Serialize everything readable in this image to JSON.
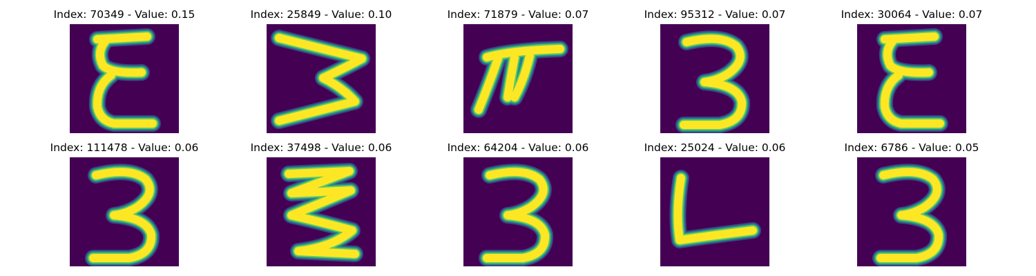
{
  "colors": {
    "background": "#440154",
    "edge_outer": "#3b528b",
    "edge_mid": "#21918c",
    "edge_inner": "#5ec962",
    "stroke": "#fde725"
  },
  "panels": [
    {
      "index": "70349",
      "value": "0.15",
      "title": "Index: 70349 - Value: 0.15",
      "glyph": "zigzag-e"
    },
    {
      "index": "25849",
      "value": "0.10",
      "title": "Index: 25849 - Value: 0.10",
      "glyph": "sideways-w"
    },
    {
      "index": "71879",
      "value": "0.07",
      "title": "Index: 71879 - Value: 0.07",
      "glyph": "pi-like"
    },
    {
      "index": "95312",
      "value": "0.07",
      "title": "Index: 95312 - Value: 0.07",
      "glyph": "three"
    },
    {
      "index": "30064",
      "value": "0.07",
      "title": "Index: 30064 - Value: 0.07",
      "glyph": "zigzag-e"
    },
    {
      "index": "111478",
      "value": "0.06",
      "title": "Index: 111478 - Value: 0.06",
      "glyph": "three"
    },
    {
      "index": "37498",
      "value": "0.06",
      "title": "Index: 37498 - Value: 0.06",
      "glyph": "zigzag-z"
    },
    {
      "index": "64204",
      "value": "0.06",
      "title": "Index: 64204 - Value: 0.06",
      "glyph": "three"
    },
    {
      "index": "25024",
      "value": "0.06",
      "title": "Index: 25024 - Value: 0.06",
      "glyph": "l-shape"
    },
    {
      "index": "6786",
      "value": "0.05",
      "title": "Index: 6786 - Value: 0.05",
      "glyph": "three"
    }
  ]
}
